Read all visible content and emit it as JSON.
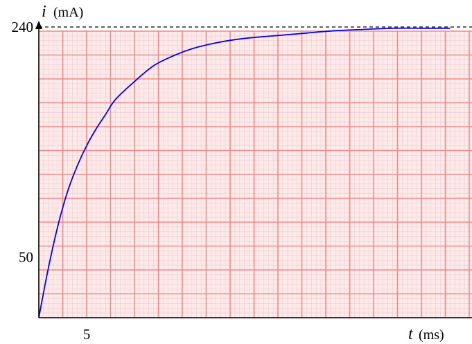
{
  "chart_data": {
    "type": "line",
    "x_variable": "t",
    "x_unit": "(ms)",
    "y_variable": "i",
    "y_unit": "(mA)",
    "y_tick_labels": [
      {
        "value": 50,
        "text": "50"
      },
      {
        "value": 240,
        "text": "240"
      }
    ],
    "x_tick_labels": [
      {
        "value": 5,
        "text": "5"
      }
    ],
    "asymptote": {
      "value": 240,
      "style": "dashed"
    },
    "xlim": [
      0,
      45
    ],
    "ylim": [
      0,
      255
    ],
    "grid": true,
    "series": [
      {
        "color": "#0000ff",
        "x": [
          0,
          1,
          2,
          3,
          4,
          5,
          6,
          7,
          8,
          10,
          12,
          14,
          16,
          18,
          20,
          22,
          25,
          28,
          31,
          34,
          37,
          40,
          43
        ],
        "y": [
          0,
          41,
          76,
          104,
          125,
          142,
          156,
          168,
          180,
          195,
          208,
          216,
          222,
          226,
          229,
          231,
          233,
          235,
          237,
          238,
          239,
          239,
          239
        ]
      }
    ]
  },
  "colors": {
    "paper": "#fdeaea",
    "grid_minor": "#f6c9c9",
    "grid_major": "#f08a8a",
    "curve": "#0000ff"
  }
}
